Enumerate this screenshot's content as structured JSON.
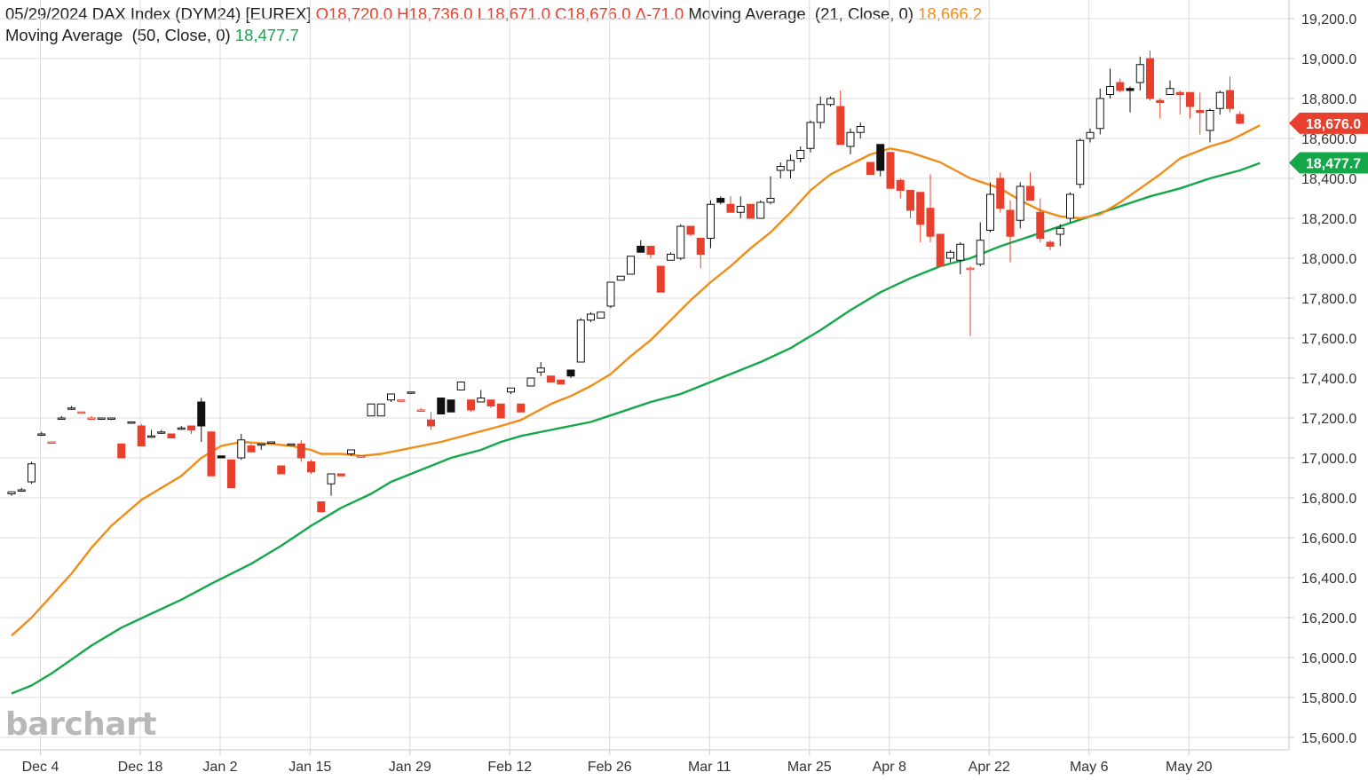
{
  "header": {
    "date": "05/29/2024",
    "symbol": "DAX Index (DYM24) [EUREX]",
    "open": "O18,720.0",
    "high": "H18,736.0",
    "low": "L18,671.0",
    "close": "C18,676.0",
    "change": "Δ-71.0",
    "ma21_label": "Moving Average  (21, Close, 0)",
    "ma21_value": "18,666.2",
    "ma50_label": "Moving Average  (50, Close, 0)",
    "ma50_value": "18,477.7"
  },
  "logo": "barchart",
  "price_tags": {
    "last": "18,676.0",
    "ma50": "18,477.7"
  },
  "colors": {
    "down": "#e8402c",
    "ma21": "#f28c18",
    "ma50": "#14a84a",
    "grid": "#dcdcdc"
  },
  "chart_data": {
    "type": "candlestick",
    "y_axis_ticks": [
      "19,200.0",
      "19,000.0",
      "18,800.0",
      "18,600.0",
      "18,400.0",
      "18,200.0",
      "18,000.0",
      "17,800.0",
      "17,600.0",
      "17,400.0",
      "17,200.0",
      "17,000.0",
      "16,800.0",
      "16,600.0",
      "16,400.0",
      "16,200.0",
      "16,000.0",
      "15,800.0",
      "15,600.0"
    ],
    "x_axis_labels": [
      "Dec 4",
      "Dec 18",
      "Jan 2",
      "Jan 15",
      "Jan 29",
      "Feb 12",
      "Feb 26",
      "Mar 11",
      "Mar 25",
      "Apr 8",
      "Apr 22",
      "May 6",
      "May 20"
    ],
    "ylim": [
      15550,
      19250
    ],
    "candles": [
      {
        "o": 16820,
        "h": 16830,
        "l": 16810,
        "c": 16830
      },
      {
        "o": 16840,
        "h": 16850,
        "l": 16830,
        "c": 16840
      },
      {
        "o": 16880,
        "h": 16980,
        "l": 16870,
        "c": 16970
      },
      {
        "o": 17120,
        "h": 17130,
        "l": 17110,
        "c": 17120
      },
      {
        "o": 17080,
        "h": 17080,
        "l": 17070,
        "c": 17080
      },
      {
        "o": 17200,
        "h": 17210,
        "l": 17200,
        "c": 17200
      },
      {
        "o": 17250,
        "h": 17260,
        "l": 17240,
        "c": 17250
      },
      {
        "o": 17230,
        "h": 17230,
        "l": 17220,
        "c": 17230
      },
      {
        "o": 17200,
        "h": 17210,
        "l": 17190,
        "c": 17200
      },
      {
        "o": 17200,
        "h": 17200,
        "l": 17190,
        "c": 17200
      },
      {
        "o": 17200,
        "h": 17200,
        "l": 17190,
        "c": 17200
      },
      {
        "o": 17070,
        "h": 17070,
        "l": 17000,
        "c": 17000
      },
      {
        "o": 17180,
        "h": 17180,
        "l": 17170,
        "c": 17180
      },
      {
        "o": 17160,
        "h": 17170,
        "l": 17060,
        "c": 17060
      },
      {
        "o": 17110,
        "h": 17140,
        "l": 17100,
        "c": 17110
      },
      {
        "o": 17130,
        "h": 17140,
        "l": 17120,
        "c": 17130
      },
      {
        "o": 17120,
        "h": 17120,
        "l": 17100,
        "c": 17100
      },
      {
        "o": 17150,
        "h": 17160,
        "l": 17140,
        "c": 17150
      },
      {
        "o": 17160,
        "h": 17160,
        "l": 17120,
        "c": 17140
      },
      {
        "o": 17280,
        "h": 17300,
        "l": 17080,
        "c": 17160
      },
      {
        "o": 17130,
        "h": 17130,
        "l": 16910,
        "c": 16910
      },
      {
        "o": 17010,
        "h": 17010,
        "l": 17000,
        "c": 17000
      },
      {
        "o": 16990,
        "h": 16990,
        "l": 16850,
        "c": 16850
      },
      {
        "o": 17000,
        "h": 17120,
        "l": 16990,
        "c": 17090
      },
      {
        "o": 17060,
        "h": 17070,
        "l": 17030,
        "c": 17030
      },
      {
        "o": 17070,
        "h": 17070,
        "l": 17040,
        "c": 17070
      },
      {
        "o": 17080,
        "h": 17080,
        "l": 17070,
        "c": 17080
      },
      {
        "o": 16960,
        "h": 16960,
        "l": 16920,
        "c": 16920
      },
      {
        "o": 17070,
        "h": 17070,
        "l": 17060,
        "c": 17070
      },
      {
        "o": 17070,
        "h": 17090,
        "l": 16980,
        "c": 17000
      },
      {
        "o": 16980,
        "h": 16990,
        "l": 16920,
        "c": 16930
      },
      {
        "o": 16780,
        "h": 16780,
        "l": 16730,
        "c": 16730
      },
      {
        "o": 16870,
        "h": 16920,
        "l": 16810,
        "c": 16920
      },
      {
        "o": 16920,
        "h": 16920,
        "l": 16910,
        "c": 16910
      },
      {
        "o": 17020,
        "h": 17040,
        "l": 17010,
        "c": 17040
      },
      {
        "o": 17010,
        "h": 17010,
        "l": 17000,
        "c": 17010
      },
      {
        "o": 17210,
        "h": 17270,
        "l": 17210,
        "c": 17270
      },
      {
        "o": 17210,
        "h": 17270,
        "l": 17210,
        "c": 17270
      },
      {
        "o": 17290,
        "h": 17320,
        "l": 17280,
        "c": 17320
      },
      {
        "o": 17290,
        "h": 17290,
        "l": 17280,
        "c": 17290
      },
      {
        "o": 17330,
        "h": 17330,
        "l": 17320,
        "c": 17330
      },
      {
        "o": 17240,
        "h": 17250,
        "l": 17230,
        "c": 17240
      },
      {
        "o": 17190,
        "h": 17230,
        "l": 17140,
        "c": 17160
      },
      {
        "o": 17300,
        "h": 17300,
        "l": 17220,
        "c": 17220
      },
      {
        "o": 17290,
        "h": 17290,
        "l": 17230,
        "c": 17230
      },
      {
        "o": 17340,
        "h": 17380,
        "l": 17340,
        "c": 17380
      },
      {
        "o": 17290,
        "h": 17290,
        "l": 17230,
        "c": 17240
      },
      {
        "o": 17280,
        "h": 17340,
        "l": 17280,
        "c": 17300
      },
      {
        "o": 17290,
        "h": 17290,
        "l": 17250,
        "c": 17260
      },
      {
        "o": 17270,
        "h": 17270,
        "l": 17200,
        "c": 17200
      },
      {
        "o": 17330,
        "h": 17350,
        "l": 17320,
        "c": 17350
      },
      {
        "o": 17270,
        "h": 17270,
        "l": 17230,
        "c": 17230
      },
      {
        "o": 17360,
        "h": 17400,
        "l": 17360,
        "c": 17400
      },
      {
        "o": 17430,
        "h": 17480,
        "l": 17410,
        "c": 17450
      },
      {
        "o": 17410,
        "h": 17410,
        "l": 17380,
        "c": 17380
      },
      {
        "o": 17390,
        "h": 17390,
        "l": 17370,
        "c": 17370
      },
      {
        "o": 17440,
        "h": 17440,
        "l": 17400,
        "c": 17410
      },
      {
        "o": 17480,
        "h": 17700,
        "l": 17480,
        "c": 17690
      },
      {
        "o": 17690,
        "h": 17730,
        "l": 17680,
        "c": 17720
      },
      {
        "o": 17700,
        "h": 17730,
        "l": 17700,
        "c": 17730
      },
      {
        "o": 17760,
        "h": 17880,
        "l": 17750,
        "c": 17880
      },
      {
        "o": 17890,
        "h": 17910,
        "l": 17890,
        "c": 17910
      },
      {
        "o": 17920,
        "h": 18010,
        "l": 17920,
        "c": 18010
      },
      {
        "o": 18060,
        "h": 18090,
        "l": 18030,
        "c": 18030
      },
      {
        "o": 18060,
        "h": 18060,
        "l": 18000,
        "c": 18020
      },
      {
        "o": 17960,
        "h": 17960,
        "l": 17830,
        "c": 17830
      },
      {
        "o": 17990,
        "h": 18030,
        "l": 17990,
        "c": 18020
      },
      {
        "o": 18000,
        "h": 18170,
        "l": 17990,
        "c": 18160
      },
      {
        "o": 18160,
        "h": 18160,
        "l": 18110,
        "c": 18120
      },
      {
        "o": 18100,
        "h": 18100,
        "l": 17950,
        "c": 18020
      },
      {
        "o": 18100,
        "h": 18290,
        "l": 18050,
        "c": 18270
      },
      {
        "o": 18300,
        "h": 18310,
        "l": 18270,
        "c": 18280
      },
      {
        "o": 18270,
        "h": 18310,
        "l": 18230,
        "c": 18230
      },
      {
        "o": 18230,
        "h": 18310,
        "l": 18200,
        "c": 18260
      },
      {
        "o": 18270,
        "h": 18270,
        "l": 18200,
        "c": 18200
      },
      {
        "o": 18200,
        "h": 18290,
        "l": 18200,
        "c": 18280
      },
      {
        "o": 18280,
        "h": 18410,
        "l": 18270,
        "c": 18300
      },
      {
        "o": 18440,
        "h": 18480,
        "l": 18400,
        "c": 18460
      },
      {
        "o": 18440,
        "h": 18520,
        "l": 18400,
        "c": 18490
      },
      {
        "o": 18500,
        "h": 18560,
        "l": 18480,
        "c": 18540
      },
      {
        "o": 18550,
        "h": 18690,
        "l": 18530,
        "c": 18680
      },
      {
        "o": 18680,
        "h": 18810,
        "l": 18650,
        "c": 18770
      },
      {
        "o": 18770,
        "h": 18810,
        "l": 18760,
        "c": 18800
      },
      {
        "o": 18760,
        "h": 18840,
        "l": 18570,
        "c": 18570
      },
      {
        "o": 18560,
        "h": 18650,
        "l": 18520,
        "c": 18630
      },
      {
        "o": 18630,
        "h": 18680,
        "l": 18600,
        "c": 18660
      },
      {
        "o": 18480,
        "h": 18480,
        "l": 18420,
        "c": 18420
      },
      {
        "o": 18570,
        "h": 18570,
        "l": 18410,
        "c": 18440
      },
      {
        "o": 18530,
        "h": 18530,
        "l": 18350,
        "c": 18350
      },
      {
        "o": 18390,
        "h": 18400,
        "l": 18300,
        "c": 18340
      },
      {
        "o": 18340,
        "h": 18340,
        "l": 18200,
        "c": 18240
      },
      {
        "o": 18330,
        "h": 18330,
        "l": 18080,
        "c": 18170
      },
      {
        "o": 18250,
        "h": 18420,
        "l": 18080,
        "c": 18110
      },
      {
        "o": 18120,
        "h": 18120,
        "l": 17960,
        "c": 17960
      },
      {
        "o": 18000,
        "h": 18040,
        "l": 17980,
        "c": 18030
      },
      {
        "o": 17990,
        "h": 18080,
        "l": 17920,
        "c": 18070
      },
      {
        "o": 17950,
        "h": 17960,
        "l": 17610,
        "c": 17950
      },
      {
        "o": 17970,
        "h": 18180,
        "l": 17960,
        "c": 18090
      },
      {
        "o": 18140,
        "h": 18380,
        "l": 18130,
        "c": 18320
      },
      {
        "o": 18400,
        "h": 18430,
        "l": 18230,
        "c": 18250
      },
      {
        "o": 18240,
        "h": 18290,
        "l": 17980,
        "c": 18110
      },
      {
        "o": 18190,
        "h": 18380,
        "l": 18150,
        "c": 18360
      },
      {
        "o": 18360,
        "h": 18430,
        "l": 18300,
        "c": 18290
      },
      {
        "o": 18230,
        "h": 18300,
        "l": 18080,
        "c": 18100
      },
      {
        "o": 18080,
        "h": 18090,
        "l": 18040,
        "c": 18060
      },
      {
        "o": 18120,
        "h": 18170,
        "l": 18060,
        "c": 18150
      },
      {
        "o": 18200,
        "h": 18330,
        "l": 18180,
        "c": 18320
      },
      {
        "o": 18370,
        "h": 18600,
        "l": 18350,
        "c": 18590
      },
      {
        "o": 18600,
        "h": 18650,
        "l": 18580,
        "c": 18630
      },
      {
        "o": 18650,
        "h": 18850,
        "l": 18620,
        "c": 18800
      },
      {
        "o": 18820,
        "h": 18950,
        "l": 18800,
        "c": 18860
      },
      {
        "o": 18880,
        "h": 18900,
        "l": 18830,
        "c": 18840
      },
      {
        "o": 18850,
        "h": 18860,
        "l": 18730,
        "c": 18840
      },
      {
        "o": 18880,
        "h": 19010,
        "l": 18840,
        "c": 18970
      },
      {
        "o": 19000,
        "h": 19040,
        "l": 18790,
        "c": 18800
      },
      {
        "o": 18790,
        "h": 18800,
        "l": 18700,
        "c": 18780
      },
      {
        "o": 18820,
        "h": 18890,
        "l": 18820,
        "c": 18850
      },
      {
        "o": 18830,
        "h": 18840,
        "l": 18720,
        "c": 18820
      },
      {
        "o": 18830,
        "h": 18830,
        "l": 18700,
        "c": 18760
      },
      {
        "o": 18740,
        "h": 18830,
        "l": 18620,
        "c": 18730
      },
      {
        "o": 18640,
        "h": 18750,
        "l": 18580,
        "c": 18740
      },
      {
        "o": 18750,
        "h": 18840,
        "l": 18720,
        "c": 18830
      },
      {
        "o": 18840,
        "h": 18910,
        "l": 18730,
        "c": 18750
      },
      {
        "o": 18720,
        "h": 18736,
        "l": 18671,
        "c": 18676
      }
    ],
    "ma21": [
      [
        0,
        16110
      ],
      [
        2,
        16200
      ],
      [
        4,
        16310
      ],
      [
        6,
        16420
      ],
      [
        8,
        16550
      ],
      [
        10,
        16660
      ],
      [
        13,
        16790
      ],
      [
        17,
        16910
      ],
      [
        19,
        17000
      ],
      [
        21,
        17060
      ],
      [
        23,
        17080
      ],
      [
        26,
        17070
      ],
      [
        28,
        17060
      ],
      [
        30,
        17040
      ],
      [
        31,
        17020
      ],
      [
        33,
        17020
      ],
      [
        35,
        17010
      ],
      [
        37,
        17020
      ],
      [
        40,
        17050
      ],
      [
        43,
        17080
      ],
      [
        46,
        17120
      ],
      [
        49,
        17160
      ],
      [
        51,
        17190
      ],
      [
        54,
        17270
      ],
      [
        56,
        17310
      ],
      [
        58,
        17360
      ],
      [
        60,
        17420
      ],
      [
        62,
        17510
      ],
      [
        64,
        17590
      ],
      [
        66,
        17690
      ],
      [
        68,
        17790
      ],
      [
        70,
        17880
      ],
      [
        72,
        17960
      ],
      [
        74,
        18050
      ],
      [
        76,
        18130
      ],
      [
        78,
        18230
      ],
      [
        80,
        18340
      ],
      [
        82,
        18420
      ],
      [
        84,
        18470
      ],
      [
        86,
        18520
      ],
      [
        88,
        18550
      ],
      [
        90,
        18530
      ],
      [
        93,
        18480
      ],
      [
        96,
        18400
      ],
      [
        99,
        18350
      ],
      [
        101,
        18290
      ],
      [
        103,
        18240
      ],
      [
        105,
        18210
      ],
      [
        107,
        18200
      ],
      [
        109,
        18220
      ],
      [
        111,
        18280
      ],
      [
        113,
        18350
      ],
      [
        115,
        18420
      ],
      [
        117,
        18500
      ],
      [
        120,
        18560
      ],
      [
        122,
        18590
      ],
      [
        124,
        18640
      ],
      [
        125,
        18666
      ]
    ],
    "ma50": [
      [
        0,
        15820
      ],
      [
        2,
        15860
      ],
      [
        4,
        15920
      ],
      [
        6,
        15990
      ],
      [
        8,
        16060
      ],
      [
        11,
        16150
      ],
      [
        14,
        16220
      ],
      [
        17,
        16290
      ],
      [
        20,
        16370
      ],
      [
        24,
        16470
      ],
      [
        27,
        16560
      ],
      [
        30,
        16660
      ],
      [
        33,
        16750
      ],
      [
        36,
        16820
      ],
      [
        38,
        16880
      ],
      [
        41,
        16940
      ],
      [
        44,
        17000
      ],
      [
        47,
        17040
      ],
      [
        49,
        17080
      ],
      [
        51,
        17110
      ],
      [
        54,
        17140
      ],
      [
        56,
        17160
      ],
      [
        58,
        17180
      ],
      [
        61,
        17230
      ],
      [
        64,
        17280
      ],
      [
        67,
        17320
      ],
      [
        70,
        17380
      ],
      [
        72,
        17420
      ],
      [
        75,
        17480
      ],
      [
        78,
        17550
      ],
      [
        81,
        17640
      ],
      [
        84,
        17740
      ],
      [
        87,
        17830
      ],
      [
        90,
        17900
      ],
      [
        93,
        17960
      ],
      [
        96,
        18000
      ],
      [
        99,
        18060
      ],
      [
        102,
        18110
      ],
      [
        105,
        18160
      ],
      [
        108,
        18210
      ],
      [
        111,
        18260
      ],
      [
        114,
        18310
      ],
      [
        117,
        18350
      ],
      [
        120,
        18400
      ],
      [
        123,
        18440
      ],
      [
        125,
        18477
      ]
    ]
  }
}
